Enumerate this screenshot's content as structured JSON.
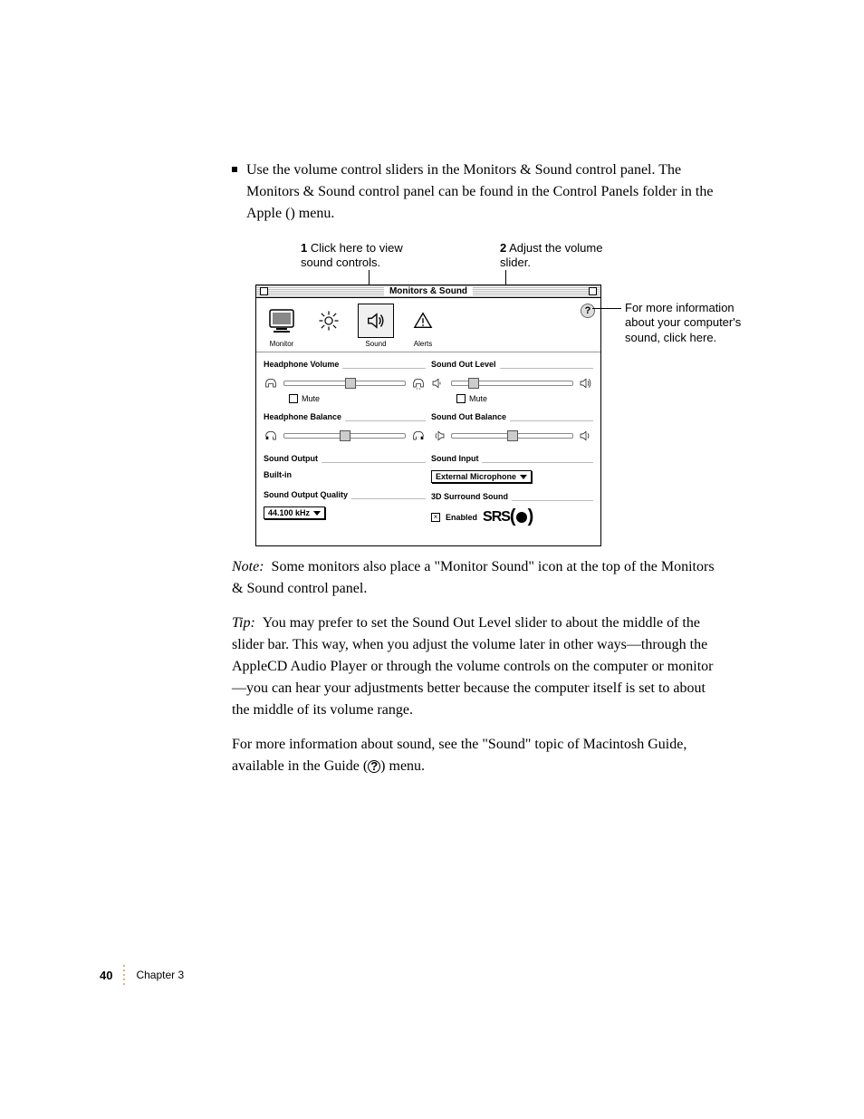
{
  "bullet_text_1": "Use the volume control sliders in the Monitors & Sound control panel. The Monitors & Sound control panel can be found in the Control Panels folder in the Apple (",
  "bullet_text_2": ") menu.",
  "callout1_num": "1",
  "callout1_text": "Click here to view sound controls.",
  "callout2_num": "2",
  "callout2_text": "Adjust the volume slider.",
  "side_callout": "For more information about your computer's sound, click here.",
  "panel": {
    "title": "Monitors & Sound",
    "help_glyph": "?",
    "icons": {
      "monitor": "Monitor",
      "sound": "Sound",
      "alerts": "Alerts"
    },
    "groups": {
      "headphone_volume": "Headphone Volume",
      "headphone_balance": "Headphone Balance",
      "sound_output": "Sound Output",
      "sound_output_val": "Built-in",
      "sound_output_quality": "Sound Output Quality",
      "quality_val": "44.100 kHz",
      "sound_out_level": "Sound Out Level",
      "sound_out_balance": "Sound Out Balance",
      "sound_input": "Sound Input",
      "sound_input_val": "External Microphone",
      "surround": "3D Surround Sound",
      "enabled": "Enabled",
      "mute": "Mute",
      "srs": "SRS"
    },
    "sliders": {
      "hp_vol": 55,
      "hp_bal": 50,
      "out_level": 18,
      "out_bal": 50
    },
    "checks": {
      "hp_mute": false,
      "out_mute": false,
      "srs_enabled": true
    }
  },
  "note_label": "Note:",
  "note_text": "Some monitors also place a \"Monitor Sound\" icon at the top of the Monitors & Sound control panel.",
  "tip_label": "Tip:",
  "tip_text": "You may prefer to set the Sound Out Level slider to about the middle of the slider bar. This way, when you adjust the volume later in other ways—through the AppleCD Audio Player or through the volume controls on the computer or monitor—you can hear your adjustments better because the computer itself is set to about the middle of its volume range.",
  "more_info_1": "For more information about sound, see the \"Sound\" topic of Macintosh Guide, available in the Guide (",
  "more_info_2": ") menu.",
  "page_number": "40",
  "chapter": "Chapter 3",
  "colors": {
    "text": "#000000",
    "bg": "#ffffff",
    "dot": "#c9a050"
  }
}
